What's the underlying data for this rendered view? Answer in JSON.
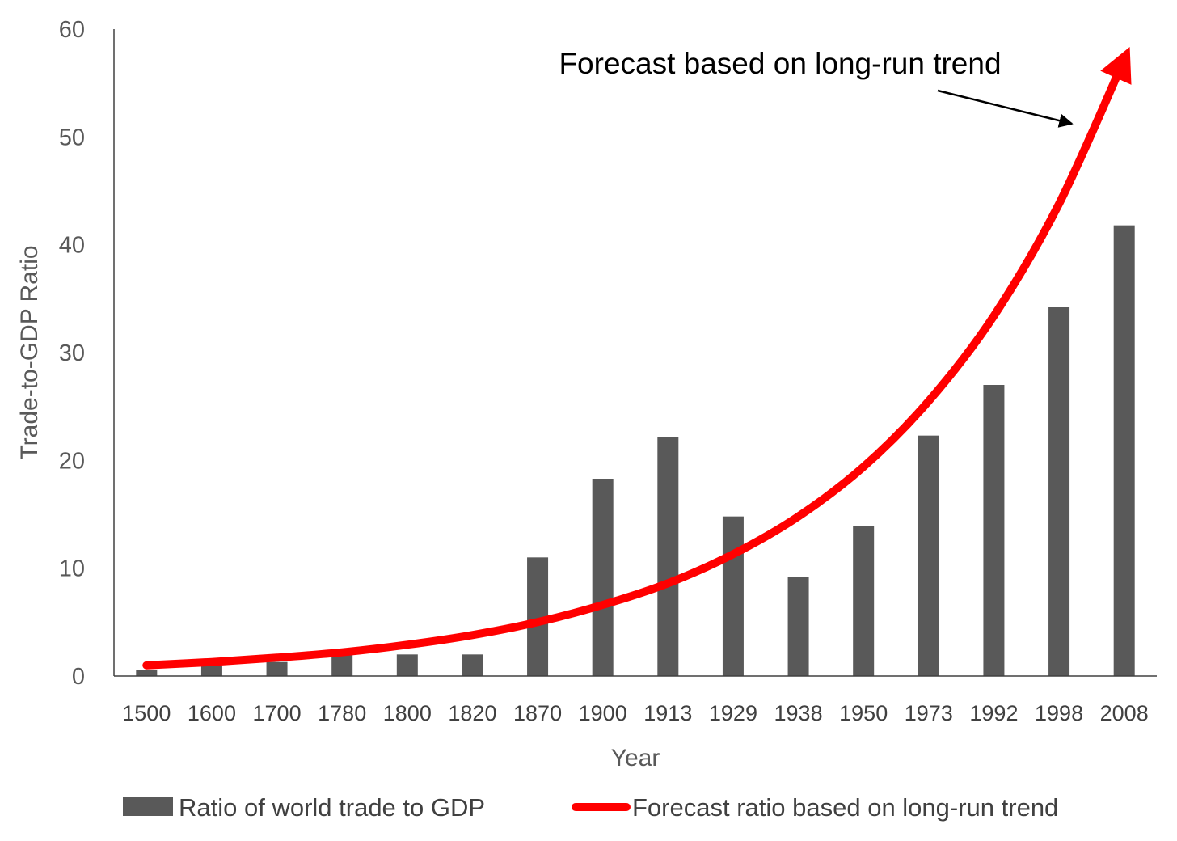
{
  "chart_data": {
    "type": "bar",
    "categories": [
      "1500",
      "1600",
      "1700",
      "1780",
      "1800",
      "1820",
      "1870",
      "1900",
      "1913",
      "1929",
      "1938",
      "1950",
      "1973",
      "1992",
      "1998",
      "2008"
    ],
    "series": [
      {
        "name": "Ratio of world trade to GDP",
        "type": "bar",
        "values": [
          0.6,
          1.0,
          1.3,
          2.0,
          2.0,
          2.0,
          11.0,
          18.3,
          22.2,
          14.8,
          9.2,
          13.9,
          22.3,
          27.0,
          34.2,
          41.8
        ],
        "color": "#595959"
      },
      {
        "name": "Forecast ratio based on long-run trend",
        "type": "line",
        "values": [
          1.0,
          1.3,
          1.7,
          2.2,
          2.9,
          3.8,
          5.0,
          6.6,
          8.6,
          11.3,
          14.8,
          19.4,
          25.5,
          33.4,
          43.8,
          57.2
        ],
        "color": "#ff0000"
      }
    ],
    "xlabel": "Year",
    "ylabel": "Trade-to-GDP Ratio",
    "ylim": [
      0,
      60
    ],
    "yticks": [
      0,
      10,
      20,
      30,
      40,
      50,
      60
    ],
    "grid": false,
    "legend": "bottom",
    "annotation": "Forecast based on long-run trend"
  }
}
